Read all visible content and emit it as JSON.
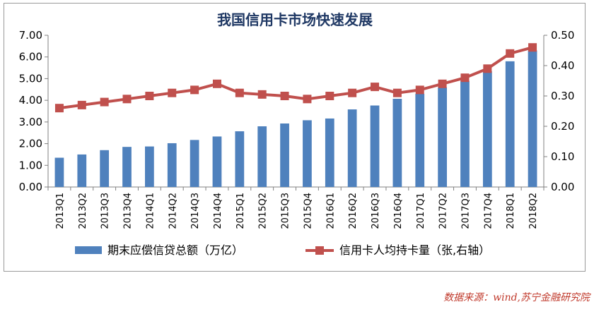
{
  "source": "数据来源：wind,苏宁金融研究院",
  "chart_data": {
    "type": "bar",
    "title": "我国信用卡市场快速发展",
    "categories": [
      "2013Q1",
      "2013Q2",
      "2013Q3",
      "2013Q4",
      "2014Q1",
      "2014Q2",
      "2014Q3",
      "2014Q4",
      "2015Q1",
      "2015Q2",
      "2015Q3",
      "2015Q4",
      "2016Q1",
      "2016Q2",
      "2016Q3",
      "2016Q4",
      "2017Q1",
      "2017Q2",
      "2017Q3",
      "2017Q4",
      "2018Q1",
      "2018Q2"
    ],
    "left_axis": {
      "ylim": [
        0,
        7
      ],
      "ticks": [
        "0.00",
        "1.00",
        "2.00",
        "3.00",
        "4.00",
        "5.00",
        "6.00",
        "7.00"
      ]
    },
    "right_axis": {
      "ylim": [
        0,
        0.5
      ],
      "ticks": [
        "0.00",
        "0.10",
        "0.20",
        "0.30",
        "0.40",
        "0.50"
      ]
    },
    "series": [
      {
        "name": "期末应偿信贷总额（万亿）",
        "type": "bar",
        "axis": "left",
        "color": "#4f81bd",
        "values": [
          1.35,
          1.5,
          1.7,
          1.85,
          1.87,
          2.02,
          2.17,
          2.33,
          2.57,
          2.8,
          2.93,
          3.08,
          3.16,
          3.58,
          3.76,
          4.07,
          4.3,
          4.6,
          4.9,
          5.35,
          5.8,
          6.3
        ]
      },
      {
        "name": "信用卡人均持卡量（张,右轴）",
        "type": "line",
        "axis": "right",
        "color": "#c0504d",
        "values": [
          0.26,
          0.27,
          0.28,
          0.29,
          0.3,
          0.31,
          0.32,
          0.34,
          0.31,
          0.305,
          0.3,
          0.29,
          0.3,
          0.31,
          0.33,
          0.31,
          0.32,
          0.34,
          0.36,
          0.39,
          0.44,
          0.46
        ]
      }
    ],
    "legend": "bottom",
    "grid": false
  }
}
